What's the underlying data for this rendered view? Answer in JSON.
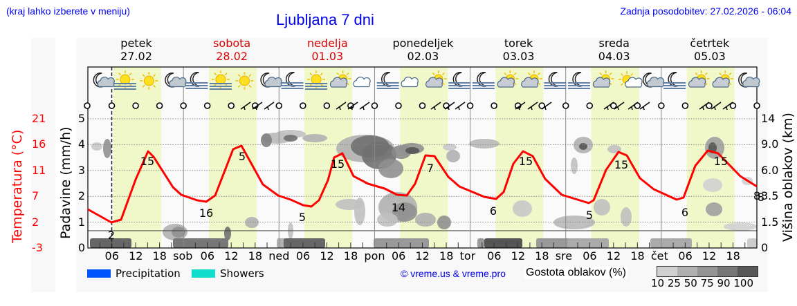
{
  "header": {
    "hint": "(kraj lahko izberete v meniju)",
    "title": "Ljubljana 7 dni",
    "updated": "Zadnja posodobitev: 27.02.2026 - 06:04"
  },
  "days": [
    {
      "name": "petek",
      "date": "27.02",
      "weekend": false,
      "short": ""
    },
    {
      "name": "sobota",
      "date": "28.02",
      "weekend": true,
      "short": "sob"
    },
    {
      "name": "nedelja",
      "date": "01.03",
      "weekend": true,
      "short": "ned"
    },
    {
      "name": "ponedeljek",
      "date": "02.03",
      "weekend": false,
      "short": "pon"
    },
    {
      "name": "torek",
      "date": "03.03",
      "weekend": false,
      "short": "tor"
    },
    {
      "name": "sreda",
      "date": "04.03",
      "weekend": false,
      "short": "sre"
    },
    {
      "name": "četrtek",
      "date": "05.03",
      "weekend": false,
      "short": "čet"
    }
  ],
  "axes": {
    "left_temp_label": "Temperatura (°C)",
    "left_precip_label": "Padavine (mm/h)",
    "right_label": "Višina oblakov (km)",
    "temp_ticks": [
      "21",
      "16",
      "11",
      "7",
      "2",
      "-3"
    ],
    "precip_ticks": [
      "5",
      "4",
      "3",
      "2",
      "1",
      "0"
    ],
    "cloud_height_ticks": [
      "14",
      "9.0",
      "6.0",
      "3.5",
      "1.5",
      "0"
    ],
    "extra_right_label": "8",
    "hour_ticks": [
      "06",
      "12",
      "18"
    ]
  },
  "legend": {
    "precipitation": {
      "label": "Precipitation",
      "color": "#0055ff"
    },
    "showers": {
      "label": "Showers",
      "color": "#11ddcc"
    },
    "credit": "© vreme.us & vreme.pro",
    "density_title": "Gostota oblakov (%)",
    "density_levels": [
      {
        "label": "10",
        "color": "#d0d0d0"
      },
      {
        "label": "25",
        "color": "#b0b0b0"
      },
      {
        "label": "50",
        "color": "#949494"
      },
      {
        "label": "75",
        "color": "#767676"
      },
      {
        "label": "90",
        "color": "#585858"
      },
      {
        "label": "100",
        "color": ""
      }
    ]
  },
  "colors": {
    "temperature_line": "#ff0000",
    "daylight_band": "#f0f7c8",
    "panel_bg": "#f8f8f8",
    "link_blue": "#0000ee",
    "weekend_red": "#dd0000"
  },
  "icons": [
    "moon-cloud",
    "sun-fog",
    "sun",
    "moon-cloud",
    "moon-fog",
    "sun-fog",
    "sun",
    "moon-cloud",
    "moon-fog",
    "sun-fog",
    "sun-cloud",
    "cloud",
    "moon-fog",
    "cloud",
    "sun-cloud",
    "moon-fog",
    "moon-fog",
    "sun-cloud",
    "sun-cloud",
    "moon-fog",
    "moon-fog",
    "sun-cloud",
    "sun-small-cloud",
    "moon-cloud",
    "moon-fog",
    "sun-cloud",
    "sun-cloud",
    "moon-cloud"
  ],
  "chart_data": {
    "type": "line",
    "title": "Ljubljana 7 dni",
    "xlabel": "",
    "ylabel": "Temperatura (°C)",
    "secondary_ylabel": "Padavine (mm/h)",
    "right_ylabel": "Višina oblakov (km)",
    "ylim": [
      -3,
      21
    ],
    "precip_ylim": [
      0,
      5
    ],
    "x_categories": [
      "pet 00",
      "pet 06",
      "pet 12",
      "pet 18",
      "sob 00",
      "sob 06",
      "sob 12",
      "sob 18",
      "ned 00",
      "ned 06",
      "ned 12",
      "ned 18",
      "pon 00",
      "pon 06",
      "pon 12",
      "pon 18",
      "tor 00",
      "tor 06",
      "tor 12",
      "tor 18",
      "sre 00",
      "sre 06",
      "sre 12",
      "sre 18",
      "čet 00",
      "čet 06",
      "čet 12",
      "čet 18",
      "pet 00"
    ],
    "series": [
      {
        "name": "Temperatura",
        "color": "#ff0000",
        "values": [
          5.5,
          2,
          12,
          10.5,
          7,
          6,
          15,
          10,
          8,
          5,
          14.5,
          10,
          8.5,
          7,
          13.5,
          9.5,
          7.5,
          6,
          14.5,
          10,
          7.5,
          5,
          14,
          10,
          7.5,
          6,
          14.5,
          11,
          8
        ]
      }
    ],
    "annotations": [
      {
        "label": "2",
        "kind": "min",
        "day": "petek"
      },
      {
        "label": "15",
        "kind": "max",
        "day": "petek"
      },
      {
        "label": "5",
        "kind": "min",
        "day": "sobota"
      },
      {
        "label": "16",
        "kind": "max",
        "day": "sobota"
      },
      {
        "label": "5",
        "kind": "min",
        "day": "nedelja"
      },
      {
        "label": "15",
        "kind": "max",
        "day": "nedelja"
      },
      {
        "label": "7",
        "kind": "min",
        "day": "ponedeljek"
      },
      {
        "label": "14",
        "kind": "max",
        "day": "ponedeljek"
      },
      {
        "label": "6",
        "kind": "min",
        "day": "torek"
      },
      {
        "label": "15",
        "kind": "max",
        "day": "torek"
      },
      {
        "label": "5",
        "kind": "min",
        "day": "sreda"
      },
      {
        "label": "15",
        "kind": "max",
        "day": "sreda"
      },
      {
        "label": "6",
        "kind": "min",
        "day": "četrtek"
      },
      {
        "label": "15",
        "kind": "max",
        "day": "četrtek"
      },
      {
        "label": "8",
        "kind": "end",
        "day": "petek"
      }
    ],
    "precipitation": [],
    "legend": [
      "Precipitation",
      "Showers",
      "Gostota oblakov (%)"
    ],
    "grid": true
  }
}
